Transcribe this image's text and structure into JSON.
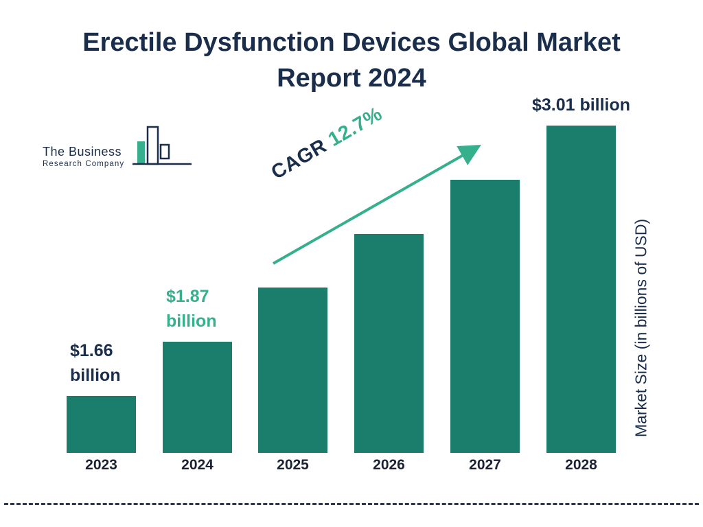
{
  "page": {
    "title_line1": "Erectile Dysfunction Devices Global Market",
    "title_line2": "Report 2024"
  },
  "logo": {
    "line1": "The Business",
    "line2": "Research Company"
  },
  "chart_data": {
    "type": "bar",
    "title": "Erectile Dysfunction Devices Global Market Report 2024",
    "categories": [
      "2023",
      "2024",
      "2025",
      "2026",
      "2027",
      "2028"
    ],
    "values": [
      1.66,
      1.87,
      2.11,
      2.37,
      2.67,
      3.01
    ],
    "unit": "billions of USD",
    "ylabel": "Market Size (in billions of USD)",
    "cagr": {
      "label": "CAGR",
      "value": "12.7%"
    },
    "value_labels": [
      {
        "bar": 0,
        "lines": [
          "$1.66",
          "billion"
        ],
        "color": "navy",
        "align": "left"
      },
      {
        "bar": 1,
        "lines": [
          "$1.87",
          "billion"
        ],
        "color": "green",
        "align": "left"
      },
      {
        "bar": 5,
        "lines": [
          "$3.01 billion"
        ],
        "color": "navy",
        "align": "center"
      }
    ],
    "colors": {
      "bar": "#1B7E6C",
      "green": "#36AF8D",
      "navy": "#1A2E4C"
    },
    "legend": "off",
    "grid": "off",
    "ylim": [
      0,
      3.2
    ]
  }
}
